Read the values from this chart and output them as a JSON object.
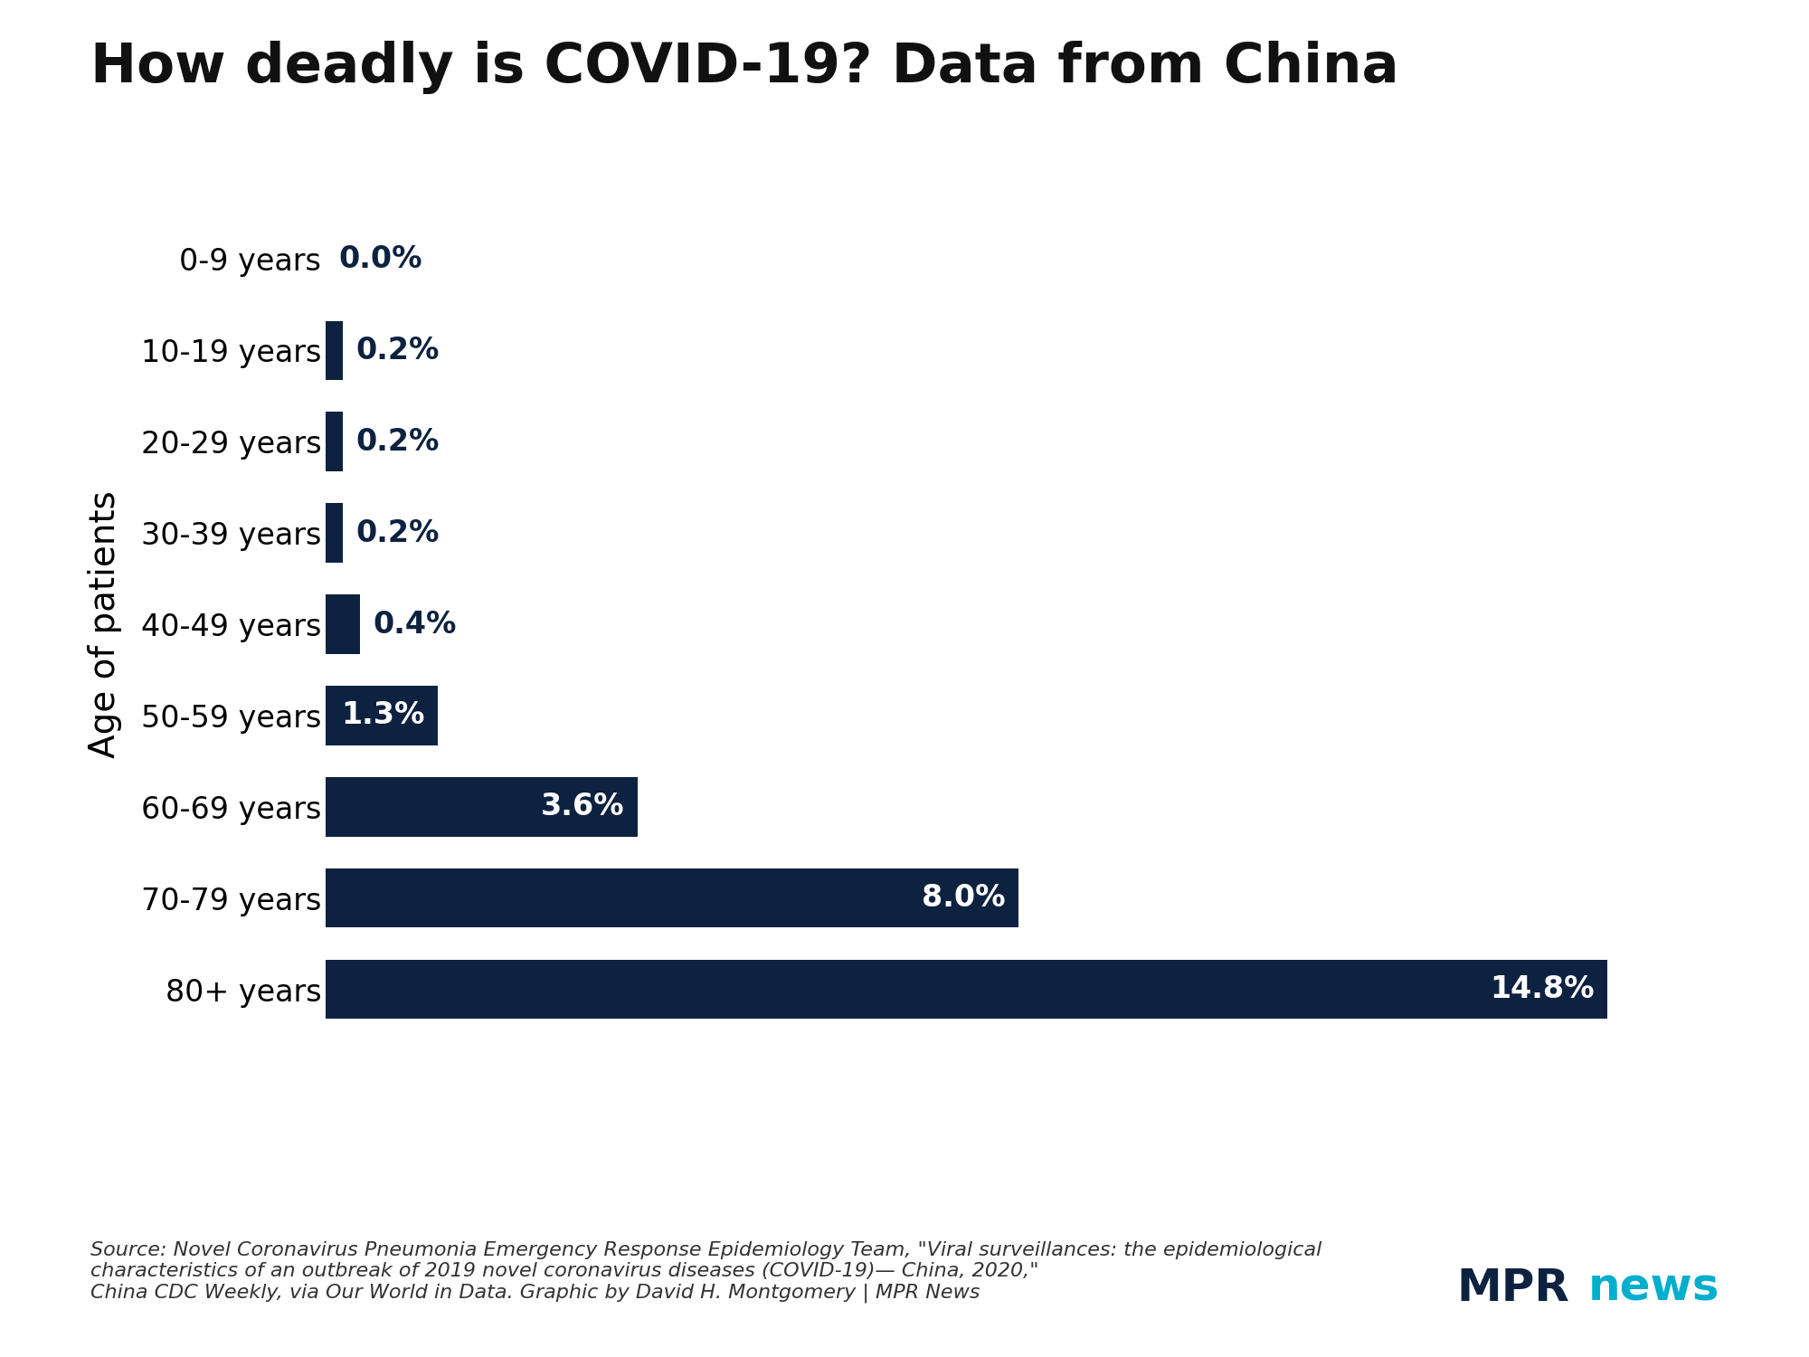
{
  "title": "How deadly is COVID-19? Data from China",
  "categories": [
    "0-9 years",
    "10-19 years",
    "20-29 years",
    "30-39 years",
    "40-49 years",
    "50-59 years",
    "60-69 years",
    "70-79 years",
    "80+ years"
  ],
  "values": [
    0.0,
    0.2,
    0.2,
    0.2,
    0.4,
    1.3,
    3.6,
    8.0,
    14.8
  ],
  "bar_color": "#0d2240",
  "ylabel": "Age of patients",
  "xlim": [
    0,
    16.5
  ],
  "label_color_inside": "#ffffff",
  "label_color_outside": "#0d2240",
  "label_threshold": 0.5,
  "source_text": "Source: Novel Coronavirus Pneumonia Emergency Response Epidemiology Team, \"Viral surveillances: the epidemiological\ncharacteristics of an outbreak of 2019 novel coronavirus diseases (COVID-19)— China, 2020,\"\nChina CDC Weekly, via Our World in Data. Graphic by David H. Montgomery | MPR News",
  "mpr_text_mpr": "MPR",
  "mpr_text_news": "news",
  "mpr_color_mpr": "#0d2240",
  "mpr_color_news": "#00aecd",
  "background_color": "#ffffff",
  "title_fontsize": 44,
  "axis_label_fontsize": 28,
  "tick_fontsize": 24,
  "bar_label_fontsize": 24,
  "source_fontsize": 16,
  "mpr_fontsize": 36
}
